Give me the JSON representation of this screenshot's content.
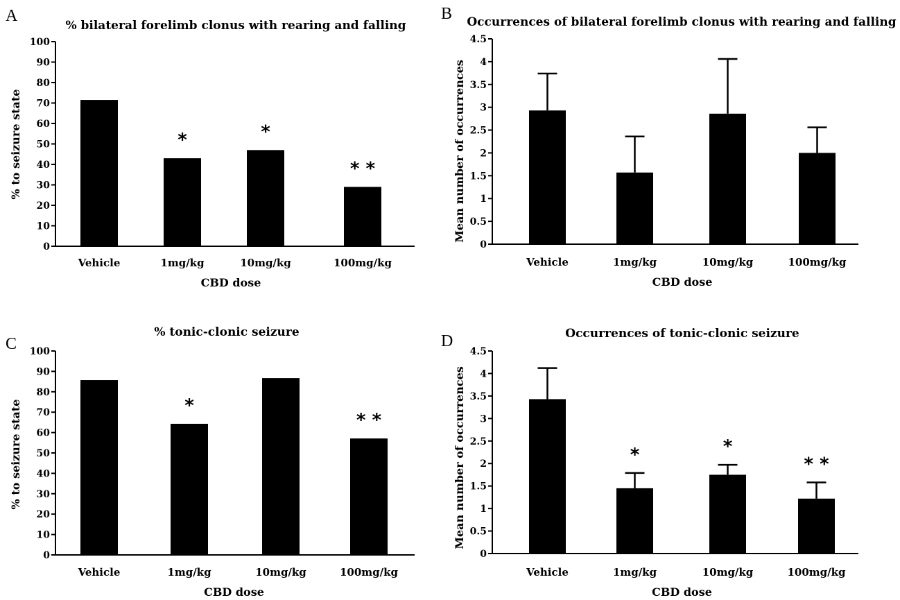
{
  "chart_data": [
    {
      "panel": "A",
      "type": "bar",
      "title": "% bilateral forelimb clonus with rearing and falling",
      "xlabel": "CBD dose",
      "ylabel": "% to seizure state",
      "categories": [
        "Vehicle",
        "1mg/kg",
        "10mg/kg",
        "100mg/kg"
      ],
      "values": [
        71.5,
        43,
        47,
        29
      ],
      "annotations": [
        "",
        "*",
        "*",
        "**"
      ],
      "ylim": [
        0,
        100
      ],
      "yticks": [
        "0",
        "10",
        "20",
        "30",
        "40",
        "50",
        "60",
        "70",
        "80",
        "90",
        "100"
      ],
      "grid": false,
      "bar_color": "#000000"
    },
    {
      "panel": "B",
      "type": "bar",
      "title": "Occurrences of bilateral forelimb clonus with rearing and falling",
      "xlabel": "CBD dose",
      "ylabel": "Mean number of occurrences",
      "categories": [
        "Vehicle",
        "1mg/kg",
        "10mg/kg",
        "100mg/kg"
      ],
      "values": [
        2.93,
        1.57,
        2.86,
        2.0
      ],
      "errors": [
        0.81,
        0.79,
        1.2,
        0.56
      ],
      "annotations": [
        "",
        "",
        "",
        ""
      ],
      "ylim": [
        0,
        4.5
      ],
      "yticks": [
        "0",
        "0.5",
        "1",
        "1.5",
        "2",
        "2.5",
        "3",
        "3.5",
        "4",
        "4.5"
      ],
      "grid": false,
      "bar_color": "#000000"
    },
    {
      "panel": "C",
      "type": "bar",
      "title": "% tonic-clonic seizure",
      "xlabel": "CBD dose",
      "ylabel": "% to seizure state",
      "categories": [
        "Vehicle",
        "1mg/kg",
        "10mg/kg",
        "100mg/kg"
      ],
      "values": [
        85.7,
        64.3,
        86.7,
        57.1
      ],
      "annotations": [
        "",
        "*",
        "",
        "**"
      ],
      "ylim": [
        0,
        100
      ],
      "yticks": [
        "0",
        "10",
        "20",
        "30",
        "40",
        "50",
        "60",
        "70",
        "80",
        "90",
        "100"
      ],
      "grid": false,
      "bar_color": "#000000"
    },
    {
      "panel": "D",
      "type": "bar",
      "title": "Occurrences of tonic-clonic seizure",
      "xlabel": "CBD dose",
      "ylabel": "Mean number of occurrences",
      "categories": [
        "Vehicle",
        "1mg/kg",
        "10mg/kg",
        "100mg/kg"
      ],
      "values": [
        3.43,
        1.45,
        1.75,
        1.22
      ],
      "errors": [
        0.69,
        0.34,
        0.22,
        0.36
      ],
      "annotations": [
        "",
        "*",
        "*",
        "**"
      ],
      "ylim": [
        0,
        4.5
      ],
      "yticks": [
        "0",
        "0.5",
        "1",
        "1.5",
        "2",
        "2.5",
        "3",
        "3.5",
        "4",
        "4.5"
      ],
      "grid": false,
      "bar_color": "#000000"
    }
  ]
}
